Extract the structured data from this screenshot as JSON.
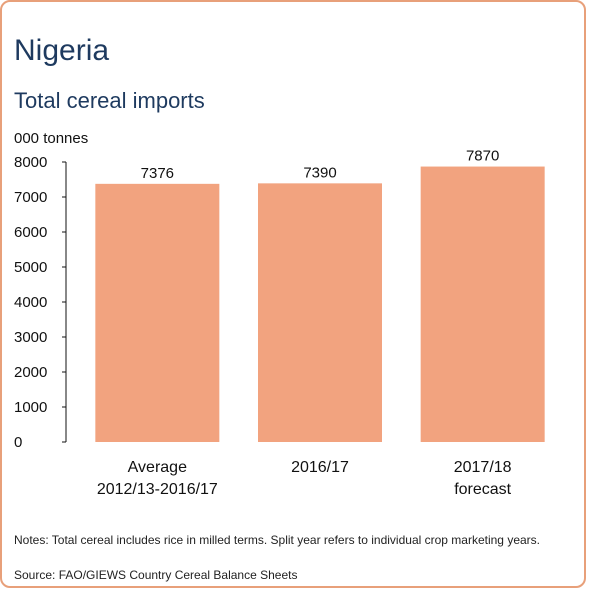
{
  "header": {
    "title": "Nigeria",
    "subtitle": "Total cereal imports",
    "unit": "000 tonnes"
  },
  "footer": {
    "notes": "Notes: Total cereal includes rice in milled terms. Split year refers to individual crop marketing years.",
    "source": "Source: FAO/GIEWS Country Cereal Balance Sheets"
  },
  "colors": {
    "bar": "#f2a37f",
    "border": "#e8a07a",
    "title": "#1e3a5f"
  },
  "chart_data": {
    "type": "bar",
    "title": "Total cereal imports",
    "ylabel": "000 tonnes",
    "xlabel": "",
    "categories": [
      [
        "Average",
        "2012/13-2016/17"
      ],
      [
        "2016/17"
      ],
      [
        "2017/18",
        "forecast"
      ]
    ],
    "values": [
      7376,
      7390,
      7870
    ],
    "value_labels": [
      "7376",
      "7390",
      "7870"
    ],
    "ylim": [
      0,
      8000
    ],
    "yticks": [
      0,
      1000,
      2000,
      3000,
      4000,
      5000,
      6000,
      7000,
      8000
    ],
    "grid": false,
    "legend": "none"
  }
}
